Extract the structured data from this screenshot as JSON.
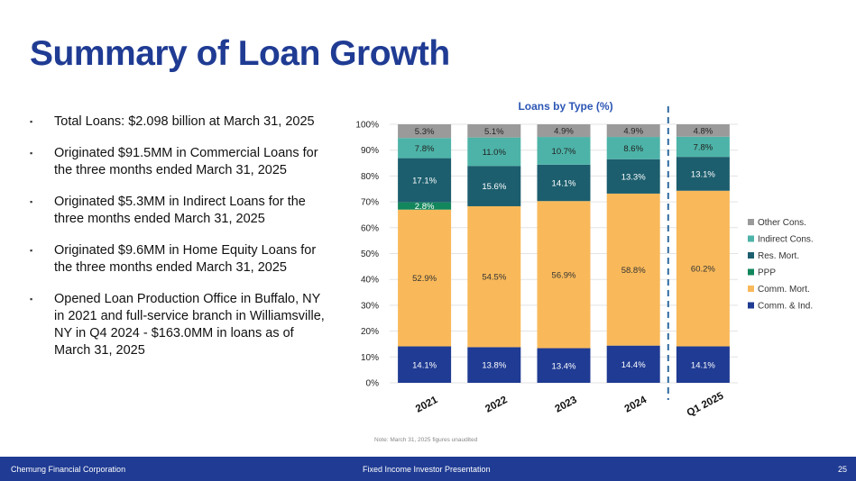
{
  "title": "Summary of Loan Growth",
  "bullets": [
    "Total Loans: $2.098 billion at March 31, 2025",
    "Originated $91.5MM in Commercial Loans for the three months ended March 31, 2025",
    "Originated $5.3MM in Indirect Loans for the three months ended March 31, 2025",
    "Originated $9.6MM in Home Equity Loans for the three months ended March 31, 2025",
    "Opened Loan Production Office in Buffalo, NY in 2021 and full-service branch in Williamsville, NY in Q4 2024 -  $163.0MM in loans as of March 31, 2025"
  ],
  "bullet_marker": "▪",
  "chart_data": {
    "type": "bar",
    "stacked": true,
    "title": "Loans by Type (%)",
    "categories": [
      "2021",
      "2022",
      "2023",
      "2024",
      "Q1 2025"
    ],
    "ylim": [
      0,
      100
    ],
    "yticks": [
      "0%",
      "10%",
      "20%",
      "30%",
      "40%",
      "50%",
      "60%",
      "70%",
      "80%",
      "90%",
      "100%"
    ],
    "separator_after_category": "2024",
    "series": [
      {
        "name": "Comm. & Ind.",
        "color": "#1f3b93",
        "label_color": "#ffffff",
        "values": [
          14.1,
          13.8,
          13.4,
          14.4,
          14.1
        ],
        "labels": [
          "14.1%",
          "13.8%",
          "13.4%",
          "14.4%",
          "14.1%"
        ]
      },
      {
        "name": "Comm. Mort.",
        "color": "#f9b95a",
        "label_color": "#333333",
        "values": [
          52.9,
          54.5,
          56.9,
          58.8,
          60.2
        ],
        "labels": [
          "52.9%",
          "54.5%",
          "56.9%",
          "58.8%",
          "60.2%"
        ]
      },
      {
        "name": "PPP",
        "color": "#12865c",
        "label_color": "#ffffff",
        "values": [
          2.8,
          0,
          0,
          0,
          0
        ],
        "labels": [
          "2.8%",
          "",
          "",
          "",
          ""
        ]
      },
      {
        "name": "Res. Mort.",
        "color": "#1c5e6e",
        "label_color": "#ffffff",
        "values": [
          17.1,
          15.6,
          14.1,
          13.3,
          13.1
        ],
        "labels": [
          "17.1%",
          "15.6%",
          "14.1%",
          "13.3%",
          "13.1%"
        ]
      },
      {
        "name": "Indirect Cons.",
        "color": "#4db3a8",
        "label_color": "#222222",
        "values": [
          7.8,
          11.0,
          10.7,
          8.6,
          7.8
        ],
        "labels": [
          "7.8%",
          "11.0%",
          "10.7%",
          "8.6%",
          "7.8%"
        ]
      },
      {
        "name": "Other Cons.",
        "color": "#9a9a9a",
        "label_color": "#222222",
        "values": [
          5.3,
          5.1,
          4.9,
          4.9,
          4.8
        ],
        "labels": [
          "5.3%",
          "5.1%",
          "4.9%",
          "4.9%",
          "4.8%"
        ]
      }
    ],
    "legend_order": [
      "Other Cons.",
      "Indirect Cons.",
      "Res. Mort.",
      "PPP",
      "Comm. Mort.",
      "Comm. & Ind."
    ],
    "legend_position": "right"
  },
  "note": "Note: March 31, 2025 figures unaudited",
  "footer": {
    "company": "Chemung Financial Corporation",
    "presentation": "Fixed Income Investor Presentation",
    "page": "25"
  },
  "colors": {
    "title": "#1f3b93",
    "chart_title": "#2c56b5",
    "footer_bg": "#1f3b93",
    "separator": "#2f6aa0",
    "gridline": "#e3e3e3"
  }
}
